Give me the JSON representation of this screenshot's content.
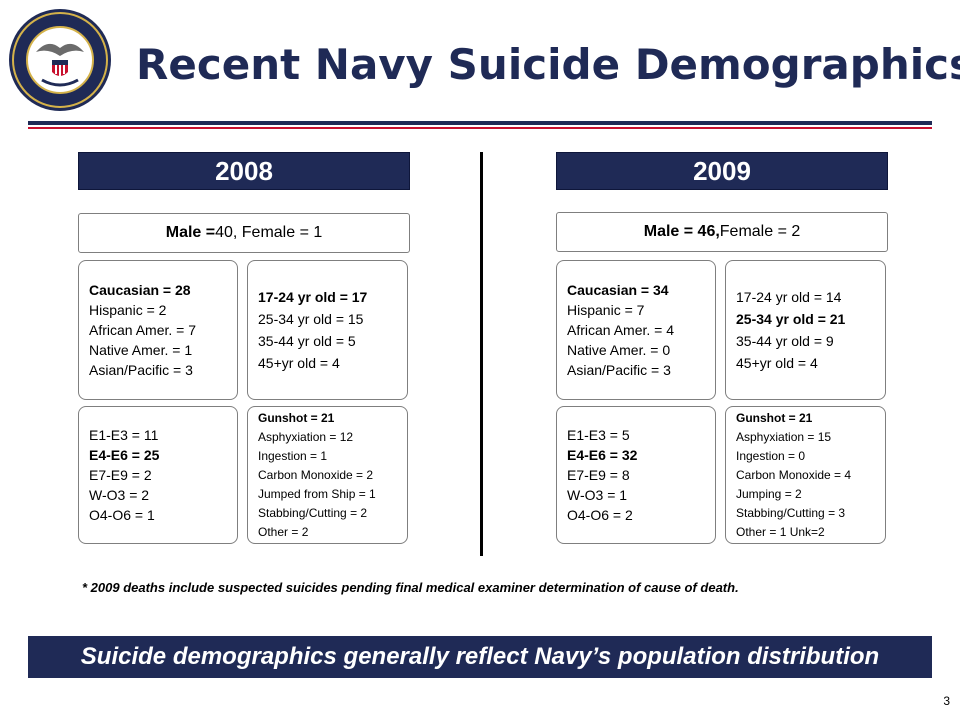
{
  "header": {
    "title": "Recent Navy Suicide Demographics",
    "seal_icon": "navy-seal-icon",
    "colors": {
      "navy": "#1f2a56",
      "red": "#c8102e"
    }
  },
  "y2008": {
    "year": "2008",
    "summary": {
      "male_label": "Male = ",
      "male_value": "40",
      "female_text": ", Female = 1"
    },
    "race": [
      "Caucasian = 28",
      "Hispanic = 2",
      "African Amer. = 7",
      "Native Amer. = 1",
      "Asian/Pacific = 3"
    ],
    "age": [
      "17-24 yr old = 17",
      "25-34 yr old = 15",
      "35-44 yr old = 5",
      "45+yr old = 4"
    ],
    "rank": [
      "E1-E3 = 11",
      "E4-E6 = 25",
      "E7-E9 = 2",
      "W-O3 = 2",
      "O4-O6 = 1"
    ],
    "method": [
      "Gunshot = 21",
      "Asphyxiation = 12",
      "Ingestion = 1",
      "Carbon Monoxide = 2",
      "Jumped from Ship = 1",
      "Stabbing/Cutting = 2",
      "Other = 2"
    ]
  },
  "y2009": {
    "year": "2009",
    "summary": {
      "male_text": "Male = 46,",
      "female_text": " Female = 2"
    },
    "race": [
      "Caucasian = 34",
      "Hispanic = 7",
      "African Amer. = 4",
      "Native Amer. = 0",
      "Asian/Pacific = 3"
    ],
    "age": [
      "17-24 yr old = 14",
      "25-34 yr old = 21",
      "35-44 yr old = 9",
      "45+yr old = 4"
    ],
    "rank": [
      "E1-E3 = 5",
      "E4-E6 = 32",
      "E7-E9 = 8",
      "W-O3 = 1",
      "O4-O6 = 2"
    ],
    "method": [
      "Gunshot = 21",
      "Asphyxiation = 15",
      "Ingestion = 0",
      "Carbon Monoxide = 4",
      "Jumping = 2",
      "Stabbing/Cutting = 3",
      "Other = 1  Unk=2"
    ]
  },
  "footnote": "* 2009 deaths include suspected suicides pending final medical examiner determination of cause of death.",
  "banner": "Suicide demographics generally reflect Navy’s population distribution",
  "page_number": "3"
}
